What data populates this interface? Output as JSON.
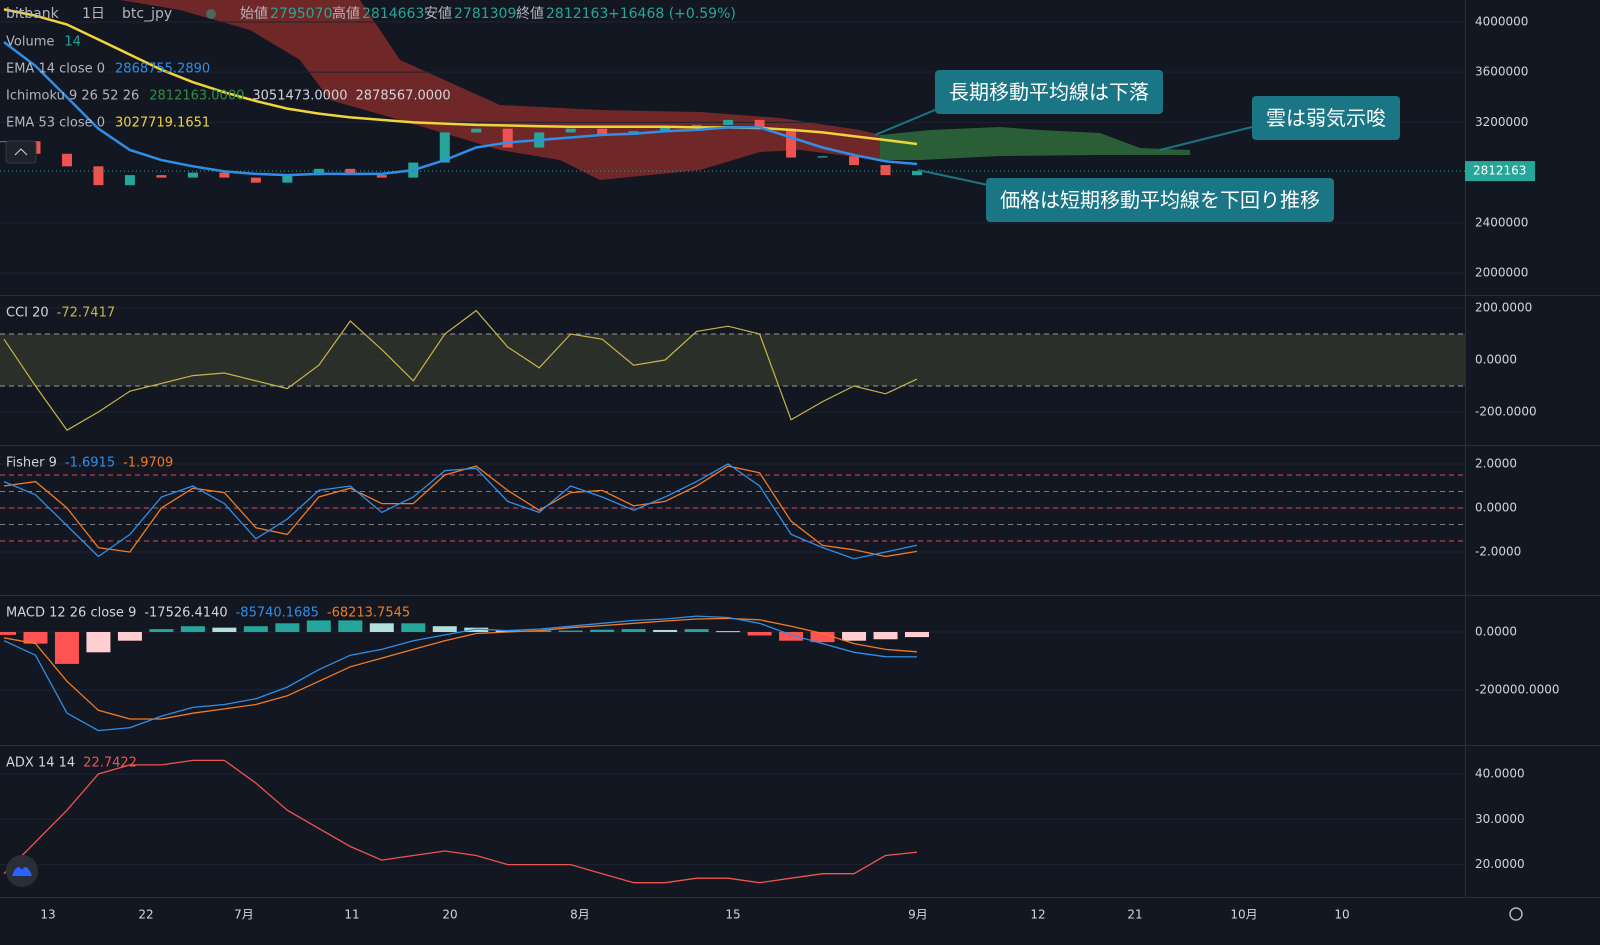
{
  "header": {
    "exchange": "bitbank",
    "interval": "1日",
    "symbol": "btc_jpy",
    "open_label": "始値",
    "open": "2795070",
    "high_label": "高値",
    "high": "2814663",
    "low_label": "安値",
    "low": "2781309",
    "close_label": "終値",
    "close": "2812163",
    "change": "+16468 (+0.59%)"
  },
  "legend": [
    {
      "name": "Volume",
      "values": [
        "14"
      ]
    },
    {
      "name": "EMA 14 close 0",
      "values": [
        "2868755.2890"
      ]
    },
    {
      "name": "Ichimoku 9 26 52 26",
      "values": [
        "2812163.0000",
        "3051473.0000",
        "2878567.0000"
      ]
    },
    {
      "name": "EMA 53 close 0",
      "values": [
        "3027719.1651"
      ]
    }
  ],
  "annotations": [
    "長期移動平均線は下落",
    "雲は弱気示唆",
    "価格は短期移動平均線を下回り推移"
  ],
  "price": {
    "ylim": [
      1825000,
      4175000
    ],
    "yticks": [
      4000000,
      3600000,
      3200000,
      2400000,
      2000000
    ],
    "last": 2812163,
    "close": [
      3050000,
      2950000,
      2850000,
      2700000,
      2780000,
      2760000,
      2800000,
      2760000,
      2720000,
      2780000,
      2830000,
      2780000,
      2760000,
      2880000,
      3120000,
      3150000,
      3000000,
      3120000,
      3150000,
      3100000,
      3130000,
      3170000,
      3180000,
      3220000,
      3150000,
      2920000,
      2930000,
      2860000,
      2780000,
      2812163
    ],
    "ema14": [
      3840000,
      3650000,
      3400000,
      3150000,
      2980000,
      2900000,
      2850000,
      2810000,
      2790000,
      2780000,
      2790000,
      2790000,
      2790000,
      2820000,
      2900000,
      3000000,
      3040000,
      3060000,
      3080000,
      3100000,
      3110000,
      3130000,
      3140000,
      3160000,
      3160000,
      3080000,
      3000000,
      2940000,
      2890000,
      2868755
    ],
    "ema53": [
      4100000,
      4050000,
      3980000,
      3860000,
      3740000,
      3620000,
      3520000,
      3440000,
      3370000,
      3310000,
      3270000,
      3240000,
      3220000,
      3200000,
      3190000,
      3180000,
      3175000,
      3170000,
      3165000,
      3165000,
      3165000,
      3165000,
      3160000,
      3160000,
      3155000,
      3140000,
      3120000,
      3090000,
      3060000,
      3027719
    ]
  },
  "cci": {
    "name": "CCI 20",
    "last": "-72.7417",
    "ylim": [
      -327,
      250
    ],
    "levels": [
      100,
      -100
    ],
    "yticks": [
      {
        "value": 200,
        "label": "200.0000"
      },
      {
        "value": 0,
        "label": "0.0000"
      },
      {
        "value": -200,
        "label": "-200.0000"
      }
    ],
    "values": [
      80,
      -100,
      -270,
      -200,
      -120,
      -90,
      -60,
      -50,
      -80,
      -110,
      -20,
      150,
      40,
      -80,
      100,
      190,
      50,
      -30,
      100,
      80,
      -20,
      0,
      110,
      130,
      100,
      -230,
      -160,
      -100,
      -130,
      -73
    ]
  },
  "fisher": {
    "name": "Fisher 9",
    "last": [
      "-1.6915",
      "-1.9709"
    ],
    "ylim": [
      -3.95,
      2.86
    ],
    "levels": [
      1.5,
      0.75,
      0,
      -0.75,
      -1.5
    ],
    "yticks": [
      {
        "value": 2,
        "label": "2.0000"
      },
      {
        "value": 0,
        "label": "0.0000"
      },
      {
        "value": -2,
        "label": "-2.0000"
      }
    ],
    "fisher": [
      1.2,
      0.6,
      -0.8,
      -2.2,
      -1.2,
      0.5,
      1.0,
      0.2,
      -1.4,
      -0.5,
      0.8,
      1.0,
      -0.2,
      0.5,
      1.7,
      1.8,
      0.3,
      -0.2,
      1.0,
      0.5,
      -0.1,
      0.5,
      1.2,
      2.0,
      1.0,
      -1.2,
      -1.8,
      -2.3,
      -2.0,
      -1.69
    ],
    "trigger": [
      1.0,
      1.2,
      0.0,
      -1.8,
      -2.0,
      0.0,
      0.9,
      0.7,
      -0.9,
      -1.2,
      0.5,
      0.9,
      0.2,
      0.2,
      1.5,
      1.9,
      0.8,
      -0.1,
      0.7,
      0.8,
      0.1,
      0.3,
      1.0,
      1.9,
      1.6,
      -0.6,
      -1.7,
      -1.9,
      -2.2,
      -1.97
    ]
  },
  "macd": {
    "name": "MACD 12 26 close 9",
    "last": [
      "-17526.4140",
      "-85740.1685",
      "-68213.7545"
    ],
    "ylim": [
      -389600,
      127600
    ],
    "yticks": [
      {
        "value": 0,
        "label": "0.0000"
      },
      {
        "value": -200000,
        "label": "-200000.0000"
      }
    ],
    "histogram": [
      -10000,
      -40000,
      -110000,
      -70000,
      -30000,
      10000,
      20000,
      15000,
      20000,
      30000,
      40000,
      40000,
      30000,
      30000,
      20000,
      15000,
      5000,
      5000,
      5000,
      8000,
      10000,
      7000,
      10000,
      3000,
      -12000,
      -30000,
      -35000,
      -30000,
      -25000,
      -17526
    ],
    "macd": [
      -30000,
      -80000,
      -280000,
      -340000,
      -330000,
      -290000,
      -260000,
      -250000,
      -230000,
      -190000,
      -130000,
      -80000,
      -60000,
      -30000,
      -10000,
      10000,
      5000,
      10000,
      20000,
      30000,
      40000,
      45000,
      55000,
      50000,
      30000,
      -10000,
      -40000,
      -70000,
      -85000,
      -85740
    ],
    "signal": [
      -20000,
      -40000,
      -170000,
      -270000,
      -300000,
      -300000,
      -280000,
      -265000,
      -250000,
      -220000,
      -170000,
      -120000,
      -90000,
      -60000,
      -30000,
      -5000,
      0,
      5000,
      15000,
      22000,
      30000,
      38000,
      45000,
      47000,
      42000,
      20000,
      -5000,
      -40000,
      -60000,
      -68213
    ]
  },
  "adx": {
    "name": "ADX 14 14",
    "last": "22.7422",
    "ylim": [
      12.85,
      46.4
    ],
    "yticks": [
      {
        "value": 40,
        "label": "40.0000"
      },
      {
        "value": 30,
        "label": "30.0000"
      },
      {
        "value": 20,
        "label": "20.0000"
      }
    ],
    "values": [
      18,
      25,
      32,
      40,
      42,
      42,
      43,
      43,
      38,
      32,
      28,
      24,
      21,
      22,
      23,
      22,
      20,
      20,
      20,
      18,
      16,
      16,
      17,
      17,
      16,
      17,
      18,
      18,
      22,
      22.74
    ]
  },
  "time_axis": [
    "13",
    "22",
    "7月",
    "11",
    "20",
    "8月",
    "15",
    "9月",
    "12",
    "21",
    "10月",
    "10"
  ]
}
